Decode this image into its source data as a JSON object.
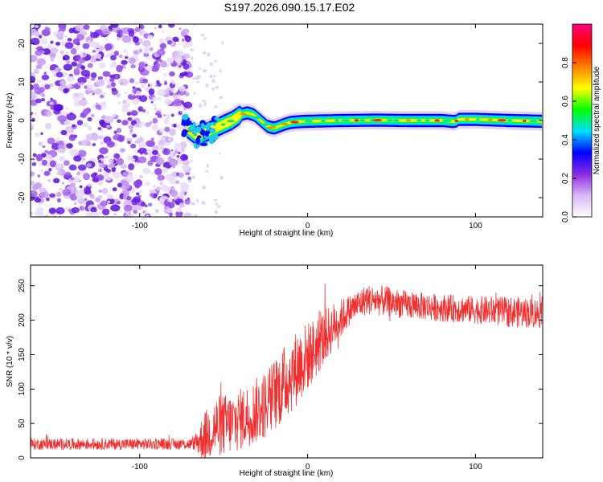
{
  "title": "S197.2026.090.15.17.E02",
  "chart_data": [
    {
      "type": "heatmap",
      "name": "spectrogram",
      "xlabel": "Height of straight line (km)",
      "ylabel": "Frequency (Hz)",
      "xlim": [
        -165,
        140
      ],
      "ylim": [
        -25,
        25
      ],
      "xticks": [
        -100,
        0,
        100
      ],
      "yticks": [
        -20,
        -10,
        0,
        10,
        20
      ],
      "noise_region_x": [
        -165,
        -70
      ],
      "signal_ridge": {
        "x": [
          -72,
          -66,
          -60,
          -55,
          -50,
          -45,
          -40,
          -36,
          -32,
          -28,
          -24,
          -20,
          -17,
          -14,
          -10,
          -5,
          0,
          10,
          20,
          40,
          60,
          80,
          88,
          90,
          100,
          120,
          140
        ],
        "y": [
          -2,
          -4,
          -3,
          -2,
          -1,
          0,
          1.5,
          2,
          1.5,
          0,
          -1.5,
          -2,
          -1.5,
          -1,
          -0.5,
          -0.3,
          -0.2,
          -0.1,
          0,
          0.1,
          0,
          0,
          -0.3,
          0.3,
          0.3,
          0,
          -0.2
        ]
      },
      "colorbar": {
        "label": "Normalized spectral amplitude",
        "range": [
          0,
          1
        ],
        "ticks": [
          "0.0",
          "0.2",
          "0.4",
          "0.6",
          "0.8"
        ],
        "colors": [
          "#ffffff",
          "#d8b8f5",
          "#8a2be2",
          "#0000ff",
          "#00e0ff",
          "#00ff00",
          "#ffff00",
          "#ff8000",
          "#ff0000",
          "#ff0080"
        ]
      }
    },
    {
      "type": "line",
      "name": "snr",
      "xlabel": "Height of straight line (km)",
      "ylabel": "SNR (10 * v/v)",
      "xlim": [
        -165,
        140
      ],
      "ylim": [
        0,
        280
      ],
      "xticks": [
        -100,
        0,
        100
      ],
      "yticks": [
        0,
        50,
        100,
        150,
        200,
        250
      ],
      "color": "#f03030",
      "envelope": {
        "x": [
          -165,
          -68,
          -62,
          -55,
          -45,
          -35,
          -25,
          -15,
          -5,
          5,
          15,
          25,
          35,
          45,
          60,
          80,
          100,
          120,
          140
        ],
        "mean": [
          20,
          20,
          30,
          45,
          50,
          62,
          78,
          105,
          135,
          160,
          190,
          215,
          230,
          228,
          222,
          218,
          215,
          212,
          210
        ],
        "spread": [
          8,
          8,
          35,
          45,
          45,
          45,
          50,
          55,
          55,
          45,
          35,
          22,
          22,
          22,
          20,
          20,
          20,
          22,
          22
        ]
      }
    }
  ]
}
